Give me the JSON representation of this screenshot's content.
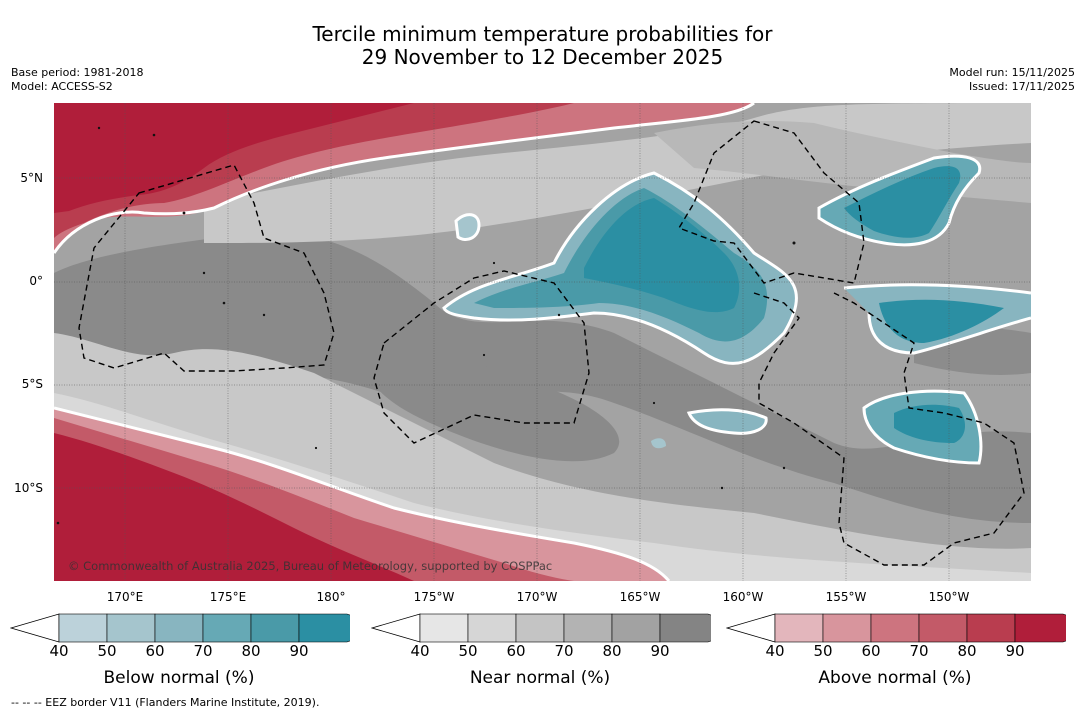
{
  "title": {
    "line1": "Tercile minimum temperature probabilities for",
    "line2": "29 November to 12 December 2025"
  },
  "meta_left": {
    "base_period": "Base period: 1981-2018",
    "model": "Model: ACCESS-S2"
  },
  "meta_right": {
    "model_run": "Model run: 15/11/2025",
    "issued": "Issued: 17/11/2025"
  },
  "map": {
    "lat_labels": [
      "5°N",
      "0°",
      "5°S",
      "10°S"
    ],
    "lon_labels": [
      "170°E",
      "175°E",
      "180°",
      "175°W",
      "170°W",
      "165°W",
      "160°W",
      "155°W",
      "150°W"
    ],
    "credit": "© Commonwealth of Australia 2025, Bureau of Meteorology, supported by COSPPac"
  },
  "colorbars": [
    {
      "label": "Below normal (%)",
      "ticks": [
        "40",
        "50",
        "60",
        "70",
        "80",
        "90"
      ],
      "colors": [
        "#bcd2da",
        "#a5c5cd",
        "#88b5c0",
        "#66a9b5",
        "#4a9aa8",
        "#2b8fa3"
      ]
    },
    {
      "label": "Near normal (%)",
      "ticks": [
        "40",
        "50",
        "60",
        "70",
        "80",
        "90"
      ],
      "colors": [
        "#e6e6e6",
        "#d6d6d6",
        "#c4c4c4",
        "#b3b3b3",
        "#a2a2a2",
        "#848484"
      ]
    },
    {
      "label": "Above normal (%)",
      "ticks": [
        "40",
        "50",
        "60",
        "70",
        "80",
        "90"
      ],
      "colors": [
        "#e3b6bc",
        "#d8959d",
        "#cd747f",
        "#c35a68",
        "#b93d4f",
        "#b01e3a"
      ]
    }
  ],
  "footer": "-- -- -- EEZ border V11 (Flanders Marine Institute, 2019)."
}
